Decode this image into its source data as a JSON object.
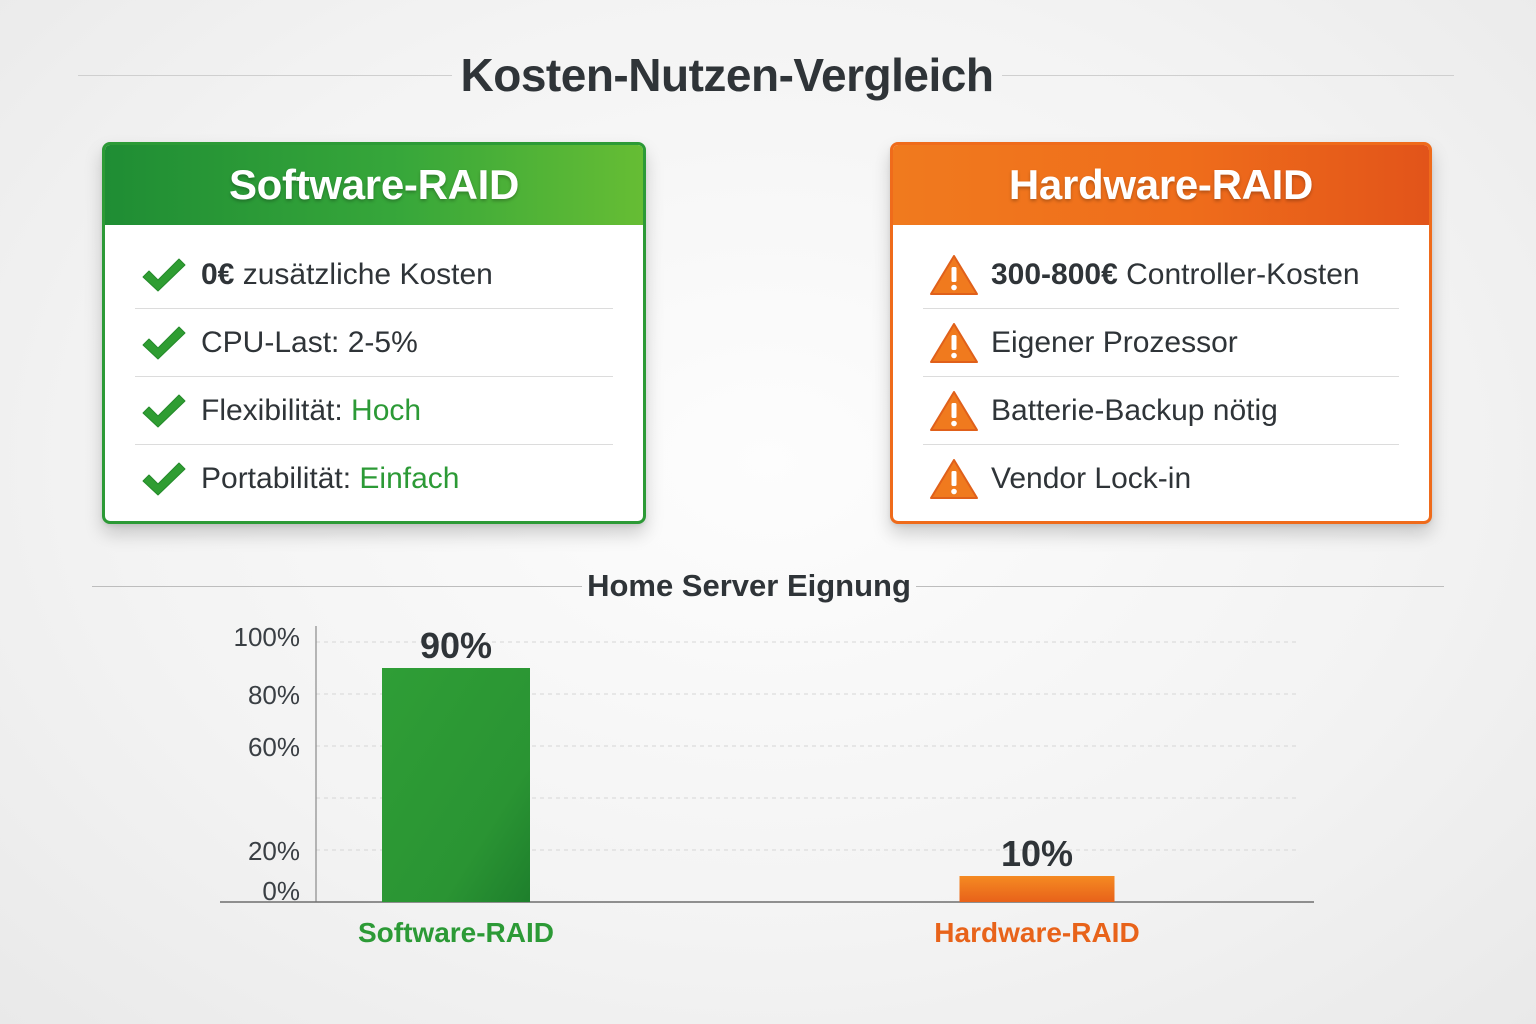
{
  "title": "Kosten-Nutzen-Vergleich",
  "software_card": {
    "title": "Software-RAID",
    "items": [
      {
        "icon": "check-icon",
        "parts": [
          {
            "text": "0€",
            "style": "strong"
          },
          {
            "text": " zusätzliche Kosten",
            "style": ""
          }
        ]
      },
      {
        "icon": "check-icon",
        "parts": [
          {
            "text": "CPU-Last: 2-5%",
            "style": ""
          }
        ]
      },
      {
        "icon": "check-icon",
        "parts": [
          {
            "text": "Flexibilität: ",
            "style": ""
          },
          {
            "text": "Hoch",
            "style": "accent-green"
          }
        ]
      },
      {
        "icon": "check-icon",
        "parts": [
          {
            "text": "Portabilität: ",
            "style": ""
          },
          {
            "text": "Einfach",
            "style": "accent-green"
          }
        ]
      }
    ]
  },
  "hardware_card": {
    "title": "Hardware-RAID",
    "items": [
      {
        "icon": "warning-icon",
        "parts": [
          {
            "text": "300-800€",
            "style": "strong"
          },
          {
            "text": " Controller-Kosten",
            "style": ""
          }
        ]
      },
      {
        "icon": "warning-icon",
        "parts": [
          {
            "text": "Eigener Prozessor",
            "style": ""
          }
        ]
      },
      {
        "icon": "warning-icon",
        "parts": [
          {
            "text": "Batterie-Backup nötig",
            "style": ""
          }
        ]
      },
      {
        "icon": "warning-icon",
        "parts": [
          {
            "text": "Vendor Lock-in",
            "style": ""
          }
        ]
      }
    ]
  },
  "colors": {
    "green": "#2c9a36",
    "green_light": "#66bd34",
    "orange": "#ef6b1b",
    "orange_light": "#f58a22"
  },
  "chart_data": {
    "type": "bar",
    "title": "Home Server Eignung",
    "categories": [
      "Software-RAID",
      "Hardware-RAID"
    ],
    "values": [
      90,
      10
    ],
    "data_labels": [
      "90%",
      "10%"
    ],
    "y_ticks": [
      {
        "value": 0,
        "label": "0%"
      },
      {
        "value": 20,
        "label": "20%"
      },
      {
        "value": 60,
        "label": "60%"
      },
      {
        "value": 80,
        "label": "80%"
      },
      {
        "value": 100,
        "label": "100%"
      }
    ],
    "gridlines": [
      0,
      20,
      40,
      60,
      80,
      100
    ],
    "ylim": [
      0,
      100
    ],
    "grid": true,
    "bar_colors": [
      "#2c9a36",
      "#ef6b1b"
    ],
    "category_label_colors": [
      "#2c9a36",
      "#e8631a"
    ]
  }
}
